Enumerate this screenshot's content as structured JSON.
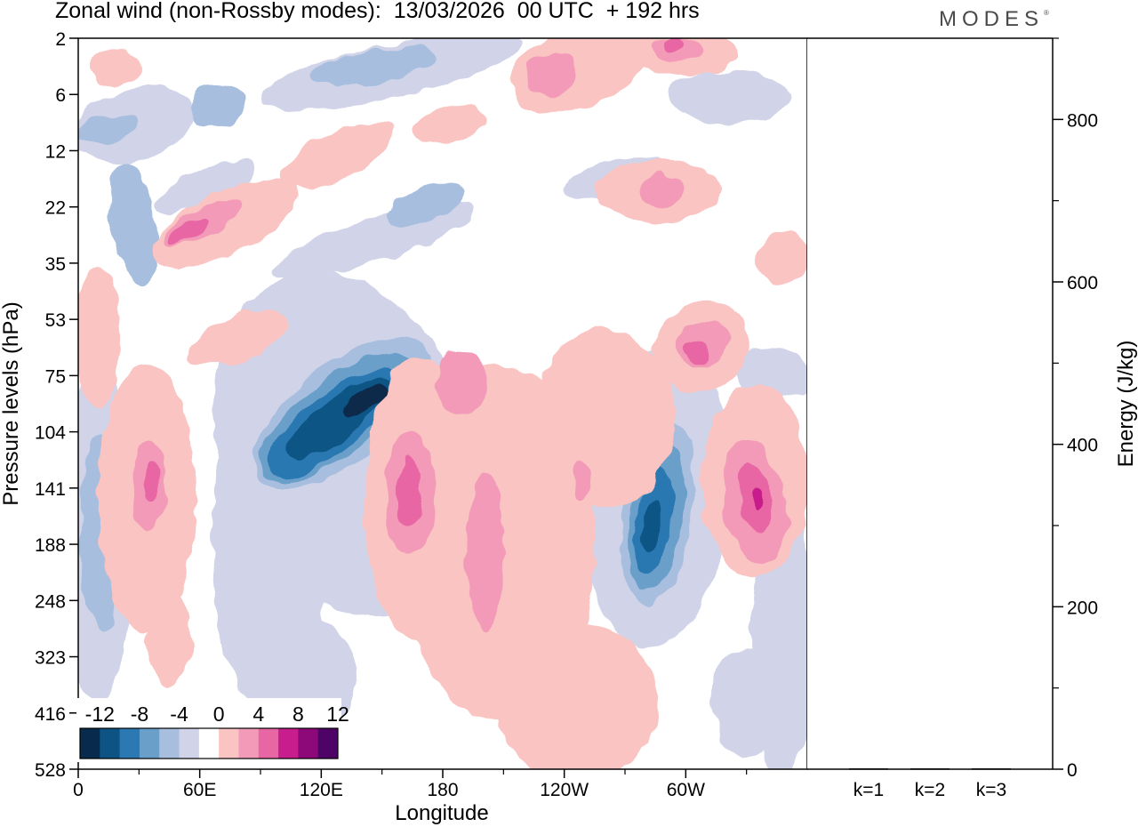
{
  "title": "Zonal wind (non-Rossby modes):  13/03/2026  00 UTC  + 192 hrs",
  "brand": "MODES",
  "brand_mark": "®",
  "chart_data": [
    {
      "type": "heatmap",
      "name": "hovmoller",
      "title": "Zonal wind (non-Rossby modes)",
      "xlabel": "Longitude",
      "ylabel": "Pressure levels (hPa)",
      "x_ticks": [
        "0",
        "60E",
        "120E",
        "180",
        "120W",
        "60W"
      ],
      "y_ticks": [
        "2",
        "6",
        "12",
        "22",
        "35",
        "53",
        "75",
        "104",
        "141",
        "188",
        "248",
        "323",
        "416",
        "528"
      ],
      "colorbar": {
        "labels": [
          "-12",
          "-8",
          "-4",
          "0",
          "4",
          "8",
          "12"
        ],
        "levels": [
          -14,
          -12,
          -10,
          -8,
          -6,
          -4,
          -2,
          2,
          4,
          6,
          8,
          10,
          12,
          14
        ],
        "colors": [
          "#082a4c",
          "#0d5484",
          "#2b78b2",
          "#6a9fca",
          "#a8bedf",
          "#d1d4e8",
          "#ffffff",
          "#f9c4c1",
          "#f39ab8",
          "#e866a3",
          "#c81d8c",
          "#8d0878",
          "#4e0467"
        ]
      },
      "features": [
        {
          "label": "negative band lower-mid troposphere",
          "lon_start": 105,
          "lon_end": 160,
          "p_top": 75,
          "p_bottom": 188,
          "min": -14
        },
        {
          "label": "negative cell western hemisphere",
          "lon_start": 285,
          "lon_end": 300,
          "p_top": 104,
          "p_bottom": 248,
          "min": -13
        },
        {
          "label": "positive cell near 165E",
          "lon_start": 155,
          "lon_end": 175,
          "p_top": 104,
          "p_bottom": 248,
          "max": 9
        },
        {
          "label": "positive cell near 330",
          "lon_start": 320,
          "lon_end": 345,
          "p_top": 104,
          "p_bottom": 248,
          "max": 11
        },
        {
          "label": "positive cell near 35E",
          "lon_start": 25,
          "lon_end": 45,
          "p_top": 104,
          "p_bottom": 188,
          "max": 8
        },
        {
          "label": "positive tilted band stratosphere",
          "lon_start": 40,
          "lon_end": 100,
          "p_top": 12,
          "p_bottom": 35,
          "max": 8
        }
      ]
    },
    {
      "type": "bar",
      "name": "energy",
      "ylabel": "Energy (J/kg)",
      "categories": [
        "k=1",
        "k=2",
        "k=3"
      ],
      "values": [
        1,
        1,
        1
      ],
      "ylim": [
        0,
        900
      ],
      "y_ticks": [
        "0",
        "200",
        "400",
        "600",
        "800"
      ]
    }
  ]
}
